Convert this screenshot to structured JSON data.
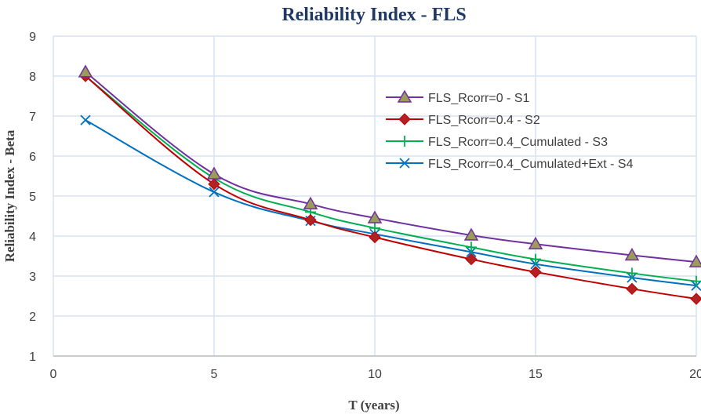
{
  "chart_data": {
    "type": "line",
    "title": "Reliability Index - FLS",
    "xlabel": "T (years)",
    "ylabel": "Reliability Index - Beta",
    "xlim": [
      0,
      20
    ],
    "ylim": [
      1,
      9
    ],
    "xticks": [
      0,
      5,
      10,
      15,
      20
    ],
    "yticks": [
      1,
      2,
      3,
      4,
      5,
      6,
      7,
      8,
      9
    ],
    "grid": true,
    "legend_position": "right",
    "x": [
      1,
      5,
      8,
      10,
      13,
      15,
      18,
      20
    ],
    "series": [
      {
        "name": "FLS_Rcorr=0 - S1",
        "color": "#7030A0",
        "marker": "triangle",
        "marker_fill": "#9B9B5A",
        "values": [
          8.1,
          5.55,
          4.8,
          4.45,
          4.02,
          3.8,
          3.52,
          3.35
        ]
      },
      {
        "name": "FLS_Rcorr=0.4 - S2",
        "color": "#C00000",
        "marker": "diamond",
        "marker_fill": "#B22222",
        "values": [
          8.0,
          5.3,
          4.4,
          3.97,
          3.42,
          3.1,
          2.68,
          2.43
        ]
      },
      {
        "name": "FLS_Rcorr=0.4_Cumulated - S3",
        "color": "#00B050",
        "marker": "plus",
        "marker_fill": "#00B050",
        "values": [
          8.0,
          5.45,
          4.6,
          4.2,
          3.72,
          3.42,
          3.07,
          2.87
        ]
      },
      {
        "name": "FLS_Rcorr=0.4_Cumulated+Ext - S4",
        "color": "#0070C0",
        "marker": "x",
        "marker_fill": "#0070C0",
        "values": [
          6.9,
          5.1,
          4.38,
          4.05,
          3.6,
          3.3,
          2.96,
          2.76
        ]
      }
    ]
  }
}
